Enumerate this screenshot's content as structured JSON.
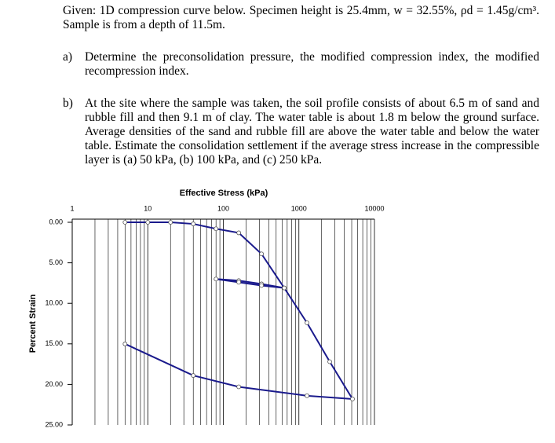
{
  "intro": "Given: 1D compression curve below. Specimen height is 25.4mm, w = 32.55%, ρd = 1.45g/cm³. Sample is from a depth of 11.5m.",
  "questions": [
    {
      "label": "a)",
      "text": "Determine the preconsolidation pressure, the modified compression index, the modified recompression index."
    },
    {
      "label": "b)",
      "text": "At the site where the sample was taken, the soil profile consists of about 6.5 m of sand and rubble fill and then 9.1 m of clay. The water table is about 1.8 m below the ground surface. Average densities of the sand and rubble fill are above the water table and below the water table. Estimate the consolidation settlement if the average stress increase in the compressible layer is (a) 50 kPa, (b) 100 kPa, and (c) 250 kPa."
    }
  ],
  "chart_data": {
    "type": "line",
    "title": "Effective Stress (kPa)",
    "y_label": "Percent Strain",
    "x_log": true,
    "y_inverted": true,
    "grid": true,
    "color": "#1a1a8c",
    "xlim": [
      1,
      10000
    ],
    "xticks": [
      1,
      10,
      100,
      1000,
      10000
    ],
    "ylim": [
      0,
      25
    ],
    "yticks": [
      {
        "value": 0,
        "label": "0.00"
      },
      {
        "value": 5,
        "label": "5.00"
      },
      {
        "value": 10,
        "label": "10.00"
      },
      {
        "value": 15,
        "label": "15.00"
      },
      {
        "value": 20,
        "label": "20.00"
      },
      {
        "value": 25,
        "label": "25.00"
      }
    ],
    "x": [
      5,
      10,
      20,
      40,
      80,
      160,
      320,
      640,
      320,
      160,
      80,
      160,
      320,
      640,
      1280,
      2560,
      5120,
      1280,
      160,
      40,
      5
    ],
    "values": [
      0,
      0,
      0,
      0.2,
      0.8,
      1.3,
      3.9,
      8.1,
      7.6,
      7.2,
      7.0,
      7.4,
      7.8,
      8.1,
      12.4,
      17.2,
      21.8,
      21.4,
      20.3,
      18.9,
      15.0
    ]
  }
}
